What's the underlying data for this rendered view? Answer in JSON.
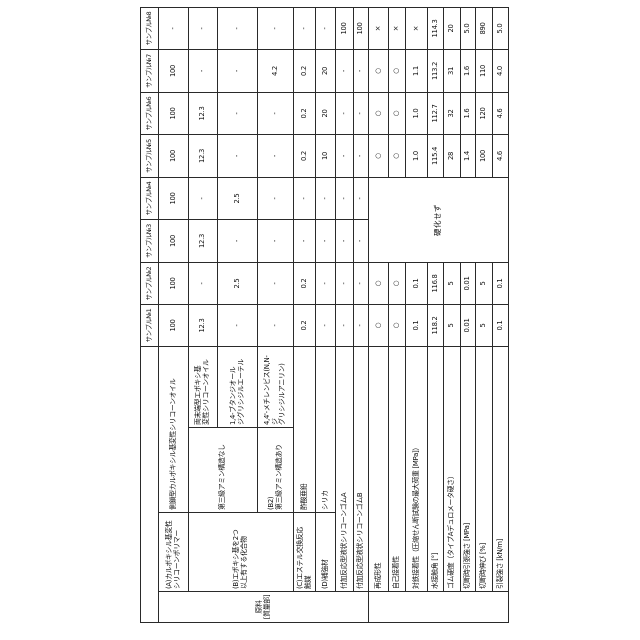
{
  "figure": {
    "kind": "patent-example-table",
    "orientation": "rotated-90deg-ccw",
    "background": "#ffffff",
    "border_color": "#2a2a2a"
  },
  "table": {
    "corner": "",
    "sample_headers": [
      "サンプル№1",
      "サンプル№2",
      "サンプル№3",
      "サンプル№4",
      "サンプル№5",
      "サンプル№6",
      "サンプル№7",
      "サンプル№8"
    ],
    "ingredient_group_label": "原料\n[質量部]",
    "cure_failed_note": "硬化せず",
    "ingredient_rows": [
      {
        "group": "(A)カルボキシル基変性\nシリコーンポリマー",
        "name": "側鎖型カルボキシル基変性シリコーンオイル",
        "values": [
          "100",
          "100",
          "100",
          "100",
          "100",
          "100",
          "100",
          "-"
        ]
      },
      {
        "group": "(B)エポキシ基を2つ\n以上有する化合物",
        "sub": "第三級アミン構造なし",
        "name": "両末端型エポキシ基\n変性シリコーンオイル",
        "values": [
          "12.3",
          "-",
          "12.3",
          "-",
          "12.3",
          "12.3",
          "-",
          "-"
        ]
      },
      {
        "name": "1,4-ブタンジオール\nジグリシジルエーテル",
        "values": [
          "-",
          "2.5",
          "-",
          "2.5",
          "-",
          "-",
          "-",
          "-"
        ]
      },
      {
        "sub": "(B2)\n第三級アミン構造あり",
        "name": "4,4'-メチレンビス(N,N-ジ\nグリシジルアニリン)",
        "values": [
          "-",
          "-",
          "-",
          "-",
          "-",
          "-",
          "4.2",
          "-"
        ]
      },
      {
        "group": "(C)エステル交換反応\n触媒",
        "name": "酢酸亜鉛",
        "values": [
          "0.2",
          "0.2",
          "-",
          "-",
          "0.2",
          "0.2",
          "0.2",
          "-"
        ]
      },
      {
        "group": "(D)補強材",
        "name": "シリカ",
        "values": [
          "-",
          "-",
          "-",
          "-",
          "10",
          "20",
          "20",
          "-"
        ]
      },
      {
        "wide_name": "付加反応型液状シリコーンゴムA",
        "values": [
          "-",
          "-",
          "-",
          "-",
          "-",
          "-",
          "-",
          "100"
        ]
      },
      {
        "wide_name": "付加反応型液状シリコーンゴムB",
        "values": [
          "-",
          "-",
          "-",
          "-",
          "-",
          "-",
          "-",
          "100"
        ]
      }
    ],
    "property_rows": [
      {
        "name": "再成形性",
        "values": [
          "○",
          "○",
          null,
          null,
          "○",
          "○",
          "○",
          "×"
        ]
      },
      {
        "name": "自己接着性",
        "values": [
          "○",
          "○",
          null,
          null,
          "○",
          "○",
          "○",
          "×"
        ]
      },
      {
        "name": "対鉄接着性（圧縮せん断試験の最大荷重 [MPa]）",
        "values": [
          "0.1",
          "0.1",
          null,
          null,
          "1.0",
          "1.0",
          "1.1",
          "×"
        ]
      },
      {
        "name": "水接触角 [°]",
        "values": [
          "118.2",
          "116.8",
          null,
          null,
          "115.4",
          "112.7",
          "113.2",
          "114.3"
        ]
      },
      {
        "name": "ゴム硬度（タイプAデュロメータ硬さ）",
        "values": [
          "5",
          "5",
          null,
          null,
          "28",
          "32",
          "31",
          "20"
        ]
      },
      {
        "name": "切断時引張強さ [MPa]",
        "values": [
          "0.01",
          "0.01",
          null,
          null,
          "1.4",
          "1.6",
          "1.6",
          "5.0"
        ]
      },
      {
        "name": "切断時伸び [%]",
        "values": [
          "5",
          "5",
          null,
          null,
          "100",
          "120",
          "110",
          "890"
        ]
      },
      {
        "name": "引裂強さ [kN/m]",
        "values": [
          "0.1",
          "0.1",
          null,
          null,
          "4.6",
          "4.6",
          "4.0",
          "5.0"
        ]
      }
    ]
  }
}
